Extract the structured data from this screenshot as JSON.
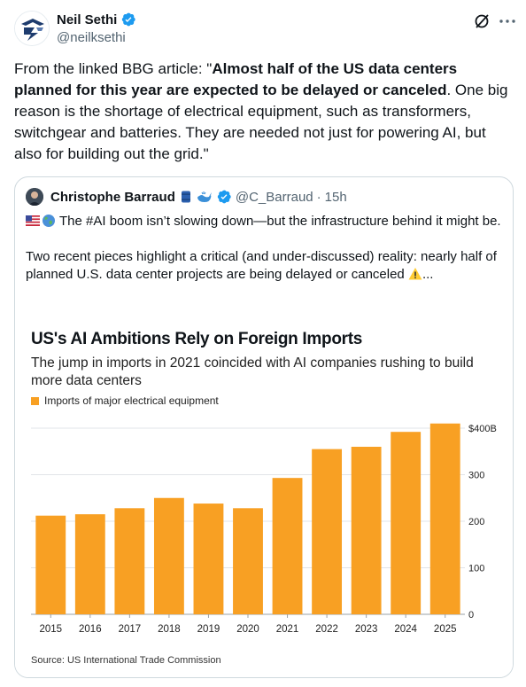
{
  "post": {
    "author_name": "Neil Sethi",
    "author_handle": "@neilksethi",
    "text_prefix": "From the linked BBG article: \"",
    "text_bold": "Almost half of the US data centers planned for this year are expected to be delayed or canceled",
    "text_suffix": ". One big reason is the shortage of electrical equipment, such as transformers, switchgear and batteries. They are needed not just for powering AI, but also for building out the grid.\""
  },
  "quote": {
    "author_name": "Christophe Barraud",
    "author_handle": "@C_Barraud",
    "separator": "·",
    "time": "15h",
    "line1": "The #AI boom isn’t slowing down—but the infrastructure behind it might be.",
    "line2": "Two recent pieces highlight a critical (and under-discussed) reality: nearly half of planned U.S. data center projects are being delayed or canceled",
    "line2_suffix": "..."
  },
  "icons": {
    "avatar": "logo-avatar",
    "verified": "verified-badge-icon",
    "grok": "grok-icon",
    "more": "more-icon",
    "flag": "us-flag-icon",
    "globe": "globe-icon",
    "warning": "warning-icon",
    "barrel": "barrel-icon",
    "whale": "whale-icon"
  },
  "colors": {
    "bar": "#f8a023",
    "verified": "#1d9bf0",
    "text": "#0f1419",
    "muted": "#536471"
  },
  "chart_data": {
    "type": "bar",
    "title": "US's AI Ambitions Rely on Foreign Imports",
    "subtitle": "The jump in imports in 2021 coincided with AI companies rushing to build more data centers",
    "legend": [
      "Imports of major electrical equipment"
    ],
    "categories": [
      "2015",
      "2016",
      "2017",
      "2018",
      "2019",
      "2020",
      "2021",
      "2022",
      "2023",
      "2024",
      "2025"
    ],
    "series": [
      {
        "name": "Imports of major electrical equipment",
        "values": [
          212,
          215,
          228,
          250,
          238,
          228,
          293,
          355,
          360,
          392,
          410
        ]
      }
    ],
    "y_ticks": [
      "0",
      "100",
      "200",
      "300",
      "$400B"
    ],
    "y_tick_values": [
      0,
      100,
      200,
      300,
      400
    ],
    "ylim": [
      0,
      410
    ],
    "grid": true,
    "y_axis_side": "right",
    "source": "Source: US International Trade Commission"
  }
}
